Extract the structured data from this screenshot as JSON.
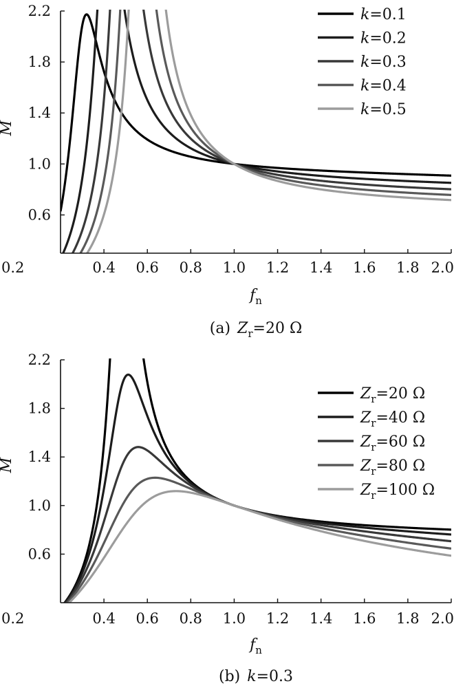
{
  "chart_data": [
    {
      "type": "line",
      "caption": {
        "label": "(a)",
        "var": "Z",
        "sub": "r",
        "rest": "=20 Ω"
      },
      "xlabel": {
        "var": "f",
        "sub": "n"
      },
      "ylabel": "M",
      "xlim": [
        0.2,
        2.0
      ],
      "ylim": [
        0.3,
        2.2
      ],
      "xticks": [
        "0.2",
        "0.4",
        "0.6",
        "0.8",
        "1.0",
        "1.2",
        "1.4",
        "1.6",
        "1.8",
        "2.0"
      ],
      "yticks": [
        "0.6",
        "1.0",
        "1.4",
        "1.8",
        "2.2"
      ],
      "legend_position": "top-right",
      "series": [
        {
          "name_var": "k",
          "name_rest": "=0.1",
          "color": "#000000",
          "k": 0.1,
          "q": 0.158
        },
        {
          "name_var": "k",
          "name_rest": "=0.2",
          "color": "#1c1c1c",
          "k": 0.2,
          "q": 0.158
        },
        {
          "name_var": "k",
          "name_rest": "=0.3",
          "color": "#383838",
          "k": 0.3,
          "q": 0.158
        },
        {
          "name_var": "k",
          "name_rest": "=0.4",
          "color": "#595959",
          "k": 0.4,
          "q": 0.158
        },
        {
          "name_var": "k",
          "name_rest": "=0.5",
          "color": "#9c9c9c",
          "k": 0.5,
          "q": 0.158
        }
      ]
    },
    {
      "type": "line",
      "caption": {
        "label": "(b)",
        "var": "k",
        "sub": "",
        "rest": "=0.3"
      },
      "xlabel": {
        "var": "f",
        "sub": "n"
      },
      "ylabel": "M",
      "xlim": [
        0.2,
        2.0
      ],
      "ylim": [
        0.2,
        2.2
      ],
      "xticks": [
        "0.2",
        "0.4",
        "0.6",
        "0.8",
        "1.0",
        "1.2",
        "1.4",
        "1.6",
        "1.8",
        "2.0"
      ],
      "yticks": [
        "0.6",
        "1.0",
        "1.4",
        "1.8",
        "2.2"
      ],
      "legend_position": "right",
      "series": [
        {
          "name_var": "Z",
          "name_sub": "r",
          "name_rest": "=20 Ω",
          "color": "#000000",
          "k": 0.3,
          "q": 0.158
        },
        {
          "name_var": "Z",
          "name_sub": "r",
          "name_rest": "=40 Ω",
          "color": "#1c1c1c",
          "k": 0.3,
          "q": 0.316
        },
        {
          "name_var": "Z",
          "name_sub": "r",
          "name_rest": "=60 Ω",
          "color": "#383838",
          "k": 0.3,
          "q": 0.474
        },
        {
          "name_var": "Z",
          "name_sub": "r",
          "name_rest": "=80 Ω",
          "color": "#595959",
          "k": 0.3,
          "q": 0.632
        },
        {
          "name_var": "Z",
          "name_sub": "r",
          "name_rest": "=100 Ω",
          "color": "#9c9c9c",
          "k": 0.3,
          "q": 0.79
        }
      ]
    }
  ]
}
